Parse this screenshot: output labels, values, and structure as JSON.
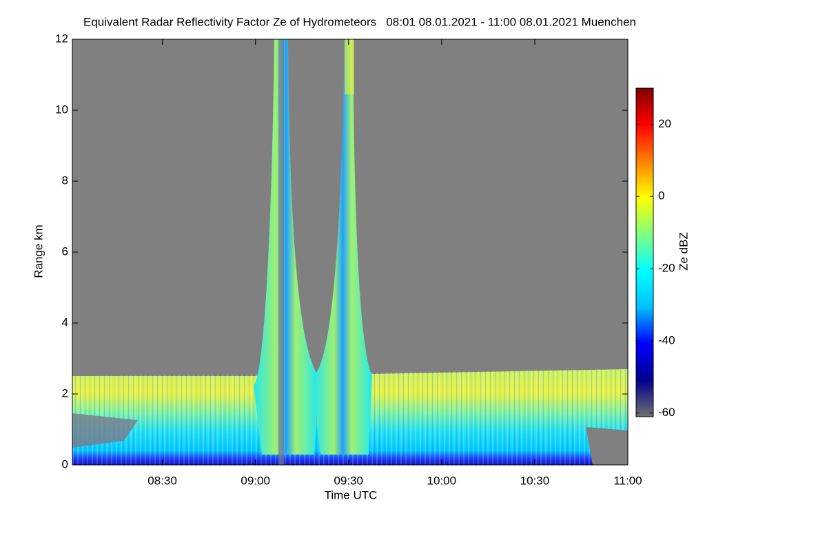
{
  "chart_data": {
    "type": "heatmap",
    "title": "Equivalent Radar Reflectivity Factor Ze of Hydrometeors   08:01 08.01.2021 - 11:00 08.01.2021 Muenchen",
    "x_label": "Time UTC",
    "y_label": "Range km",
    "colorbar_label": "Ze dBZ",
    "xlim": [
      481,
      660
    ],
    "xticks": [
      {
        "value": 510,
        "label": "08:30"
      },
      {
        "value": 540,
        "label": "09:00"
      },
      {
        "value": 570,
        "label": "09:30"
      },
      {
        "value": 600,
        "label": "10:00"
      },
      {
        "value": 630,
        "label": "10:30"
      },
      {
        "value": 660,
        "label": "11:00"
      }
    ],
    "ylim": [
      0,
      12
    ],
    "yticks": [
      0,
      2,
      4,
      6,
      8,
      10,
      12
    ],
    "zlim": [
      -61,
      30
    ],
    "zticks": [
      -60,
      -40,
      -20,
      0,
      20
    ],
    "colormap": [
      "#707070",
      "#00008f",
      "#0000ff",
      "#00c0ff",
      "#00ffff",
      "#80ff80",
      "#ffff00",
      "#ff8000",
      "#ff0000",
      "#800000"
    ]
  }
}
